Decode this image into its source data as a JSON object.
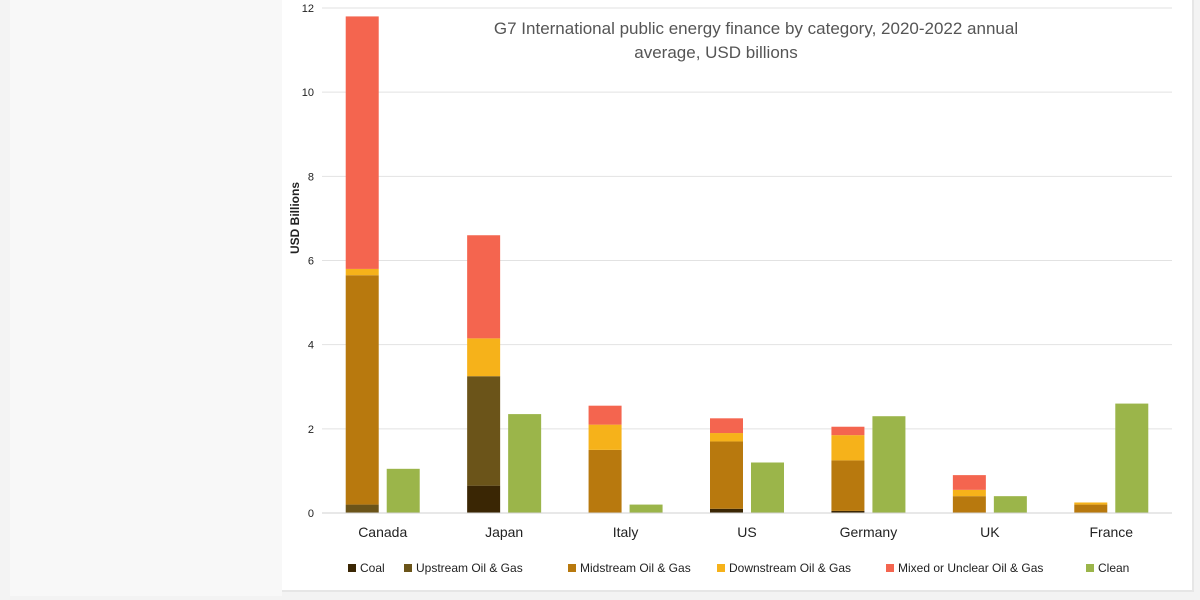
{
  "chart_data": {
    "type": "bar",
    "stacked": true,
    "title": "G7 International public energy finance by category, 2020-2022 annual average, USD billions",
    "title_lines": [
      "G7 International public energy finance by category, 2020-2022 annual",
      "average, USD billions"
    ],
    "xlabel": "",
    "ylabel": "USD Billions",
    "ylim": [
      0,
      12
    ],
    "yticks": [
      0,
      2,
      4,
      6,
      8,
      10,
      12
    ],
    "grid": true,
    "legend_position": "bottom",
    "categories": [
      "Canada",
      "Japan",
      "Italy",
      "US",
      "Germany",
      "UK",
      "France"
    ],
    "series": [
      {
        "name": "Coal",
        "color": "#3a2604",
        "stack": "fossil",
        "values": [
          0,
          0.65,
          0,
          0.1,
          0.05,
          0,
          0
        ]
      },
      {
        "name": "Upstream Oil & Gas",
        "color": "#6b5419",
        "stack": "fossil",
        "values": [
          0.2,
          2.6,
          0,
          0,
          0,
          0,
          0
        ]
      },
      {
        "name": "Midstream Oil & Gas",
        "color": "#b8790e",
        "stack": "fossil",
        "values": [
          5.45,
          0,
          1.5,
          1.6,
          1.2,
          0.4,
          0.2
        ]
      },
      {
        "name": "Downstream Oil & Gas",
        "color": "#f6b21a",
        "stack": "fossil",
        "values": [
          0.15,
          0.9,
          0.6,
          0.2,
          0.6,
          0.15,
          0.05
        ]
      },
      {
        "name": "Mixed or Unclear Oil & Gas",
        "color": "#f4654f",
        "stack": "fossil",
        "values": [
          6.0,
          2.45,
          0.45,
          0.35,
          0.2,
          0.35,
          0
        ]
      },
      {
        "name": "Clean",
        "color": "#9bb54a",
        "stack": "clean",
        "values": [
          1.05,
          2.35,
          0.2,
          1.2,
          2.3,
          0.4,
          2.6
        ]
      }
    ]
  }
}
